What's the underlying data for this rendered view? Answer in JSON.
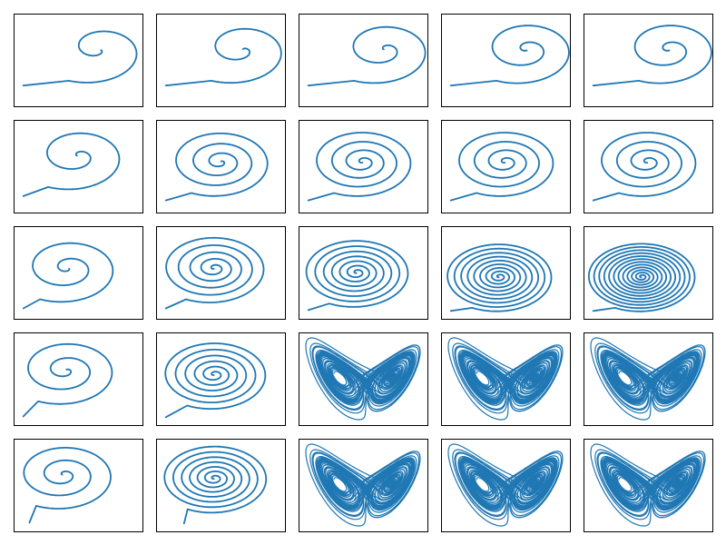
{
  "chart_data": {
    "type": "line",
    "title": "",
    "layout": {
      "rows": 5,
      "cols": 5
    },
    "axes": {
      "ticks": "none",
      "grid": false,
      "legend": "none"
    },
    "series_color": "#1f77b4",
    "panels": [
      {
        "row": 1,
        "col": 1,
        "kind": "spiral",
        "cx": 0.68,
        "cy": 0.62,
        "rings": 1.25,
        "density": 1.0,
        "start": [
          0.05,
          0.2
        ],
        "tilt": 0.15
      },
      {
        "row": 1,
        "col": 2,
        "kind": "spiral",
        "cx": 0.68,
        "cy": 0.62,
        "rings": 1.5,
        "density": 1.0,
        "start": [
          0.05,
          0.2
        ],
        "tilt": 0.15
      },
      {
        "row": 1,
        "col": 3,
        "kind": "spiral",
        "cx": 0.68,
        "cy": 0.62,
        "rings": 1.75,
        "density": 1.0,
        "start": [
          0.05,
          0.2
        ],
        "tilt": 0.15
      },
      {
        "row": 1,
        "col": 4,
        "kind": "spiral",
        "cx": 0.68,
        "cy": 0.62,
        "rings": 2.0,
        "density": 1.0,
        "start": [
          0.05,
          0.2
        ],
        "tilt": 0.15
      },
      {
        "row": 1,
        "col": 5,
        "kind": "spiral",
        "cx": 0.68,
        "cy": 0.62,
        "rings": 2.0,
        "density": 1.0,
        "start": [
          0.05,
          0.2
        ],
        "tilt": 0.15
      },
      {
        "row": 2,
        "col": 1,
        "kind": "spiral",
        "cx": 0.5,
        "cy": 0.62,
        "rings": 1.75,
        "density": 1.0,
        "start": [
          0.05,
          0.15
        ],
        "tilt": 0.12
      },
      {
        "row": 2,
        "col": 2,
        "kind": "spiral",
        "cx": 0.5,
        "cy": 0.55,
        "rings": 3.5,
        "density": 1.0,
        "start": [
          0.05,
          0.1
        ],
        "tilt": 0.1
      },
      {
        "row": 2,
        "col": 3,
        "kind": "spiral",
        "cx": 0.5,
        "cy": 0.55,
        "rings": 4.0,
        "density": 1.0,
        "start": [
          0.05,
          0.1
        ],
        "tilt": 0.1
      },
      {
        "row": 2,
        "col": 4,
        "kind": "spiral",
        "cx": 0.5,
        "cy": 0.55,
        "rings": 4.0,
        "density": 1.0,
        "start": [
          0.05,
          0.1
        ],
        "tilt": 0.1
      },
      {
        "row": 2,
        "col": 5,
        "kind": "spiral",
        "cx": 0.5,
        "cy": 0.55,
        "rings": 4.0,
        "density": 1.0,
        "start": [
          0.05,
          0.1
        ],
        "tilt": 0.1
      },
      {
        "row": 3,
        "col": 1,
        "kind": "spiral",
        "cx": 0.42,
        "cy": 0.55,
        "rings": 2.2,
        "density": 1.0,
        "start": [
          0.05,
          0.08
        ],
        "tilt": 0.08
      },
      {
        "row": 3,
        "col": 2,
        "kind": "spiral",
        "cx": 0.45,
        "cy": 0.55,
        "rings": 5.0,
        "density": 1.0,
        "start": [
          0.05,
          0.08
        ],
        "tilt": 0.08
      },
      {
        "row": 3,
        "col": 3,
        "kind": "spiral",
        "cx": 0.45,
        "cy": 0.5,
        "rings": 7.0,
        "density": 1.0,
        "start": [
          0.05,
          0.06
        ],
        "tilt": 0.06
      },
      {
        "row": 3,
        "col": 4,
        "kind": "spiral",
        "cx": 0.45,
        "cy": 0.45,
        "rings": 9.0,
        "density": 1.0,
        "start": [
          0.05,
          0.05
        ],
        "tilt": 0.05
      },
      {
        "row": 3,
        "col": 5,
        "kind": "spiral",
        "cx": 0.45,
        "cy": 0.45,
        "rings": 12.0,
        "density": 1.0,
        "start": [
          0.05,
          0.05
        ],
        "tilt": 0.04
      },
      {
        "row": 4,
        "col": 1,
        "kind": "spiral",
        "cx": 0.4,
        "cy": 0.6,
        "rings": 2.5,
        "density": 1.0,
        "start": [
          0.05,
          0.06
        ],
        "tilt": 0.06
      },
      {
        "row": 4,
        "col": 2,
        "kind": "spiral",
        "cx": 0.45,
        "cy": 0.55,
        "rings": 6.0,
        "density": 1.0,
        "start": [
          0.05,
          0.05
        ],
        "tilt": 0.05
      },
      {
        "row": 4,
        "col": 3,
        "kind": "lorenz",
        "left": [
          0.28,
          0.55
        ],
        "right": [
          0.68,
          0.55
        ],
        "density": 1.0
      },
      {
        "row": 4,
        "col": 4,
        "kind": "lorenz",
        "left": [
          0.28,
          0.55
        ],
        "right": [
          0.68,
          0.55
        ],
        "density": 1.0
      },
      {
        "row": 4,
        "col": 5,
        "kind": "lorenz",
        "left": [
          0.28,
          0.55
        ],
        "right": [
          0.68,
          0.55
        ],
        "density": 1.0
      },
      {
        "row": 5,
        "col": 1,
        "kind": "spiral",
        "cx": 0.38,
        "cy": 0.62,
        "rings": 2.8,
        "density": 1.0,
        "start": [
          0.1,
          0.06
        ],
        "tilt": 0.05
      },
      {
        "row": 5,
        "col": 2,
        "kind": "spiral",
        "cx": 0.45,
        "cy": 0.58,
        "rings": 7.0,
        "density": 1.0,
        "start": [
          0.2,
          0.05
        ],
        "tilt": 0.04
      },
      {
        "row": 5,
        "col": 3,
        "kind": "lorenz",
        "left": [
          0.3,
          0.55
        ],
        "right": [
          0.65,
          0.55
        ],
        "density": 1.0
      },
      {
        "row": 5,
        "col": 4,
        "kind": "lorenz",
        "left": [
          0.28,
          0.55
        ],
        "right": [
          0.65,
          0.55
        ],
        "density": 1.0
      },
      {
        "row": 5,
        "col": 5,
        "kind": "lorenz",
        "left": [
          0.28,
          0.55
        ],
        "right": [
          0.7,
          0.55
        ],
        "density": 1.0
      }
    ]
  }
}
